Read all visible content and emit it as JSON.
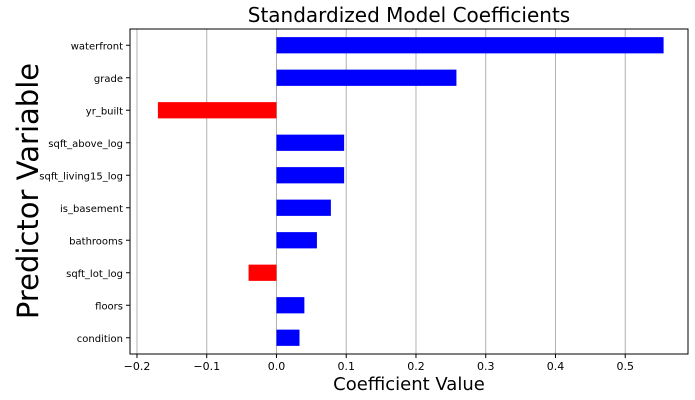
{
  "chart_data": {
    "type": "bar",
    "orientation": "horizontal",
    "title": "Standardized Model Coefficients",
    "xlabel": "Coefficient Value",
    "ylabel": "Predictor Variable",
    "categories": [
      "waterfront",
      "grade",
      "yr_built",
      "sqft_above_log",
      "sqft_living15_log",
      "is_basement",
      "bathrooms",
      "sqft_lot_log",
      "floors",
      "condition"
    ],
    "values": [
      0.555,
      0.258,
      -0.17,
      0.097,
      0.097,
      0.078,
      0.058,
      -0.04,
      0.04,
      0.033
    ],
    "xlim": [
      -0.21,
      0.59
    ],
    "xticks": [
      -0.2,
      -0.1,
      0.0,
      0.1,
      0.2,
      0.3,
      0.4,
      0.5
    ],
    "xtick_labels": [
      "−0.2",
      "−0.1",
      "0.0",
      "0.1",
      "0.2",
      "0.3",
      "0.4",
      "0.5"
    ],
    "grid": "vertical",
    "colors": {
      "positive": "#0000ff",
      "negative": "#ff0000",
      "grid": "#b0b0b0"
    }
  }
}
